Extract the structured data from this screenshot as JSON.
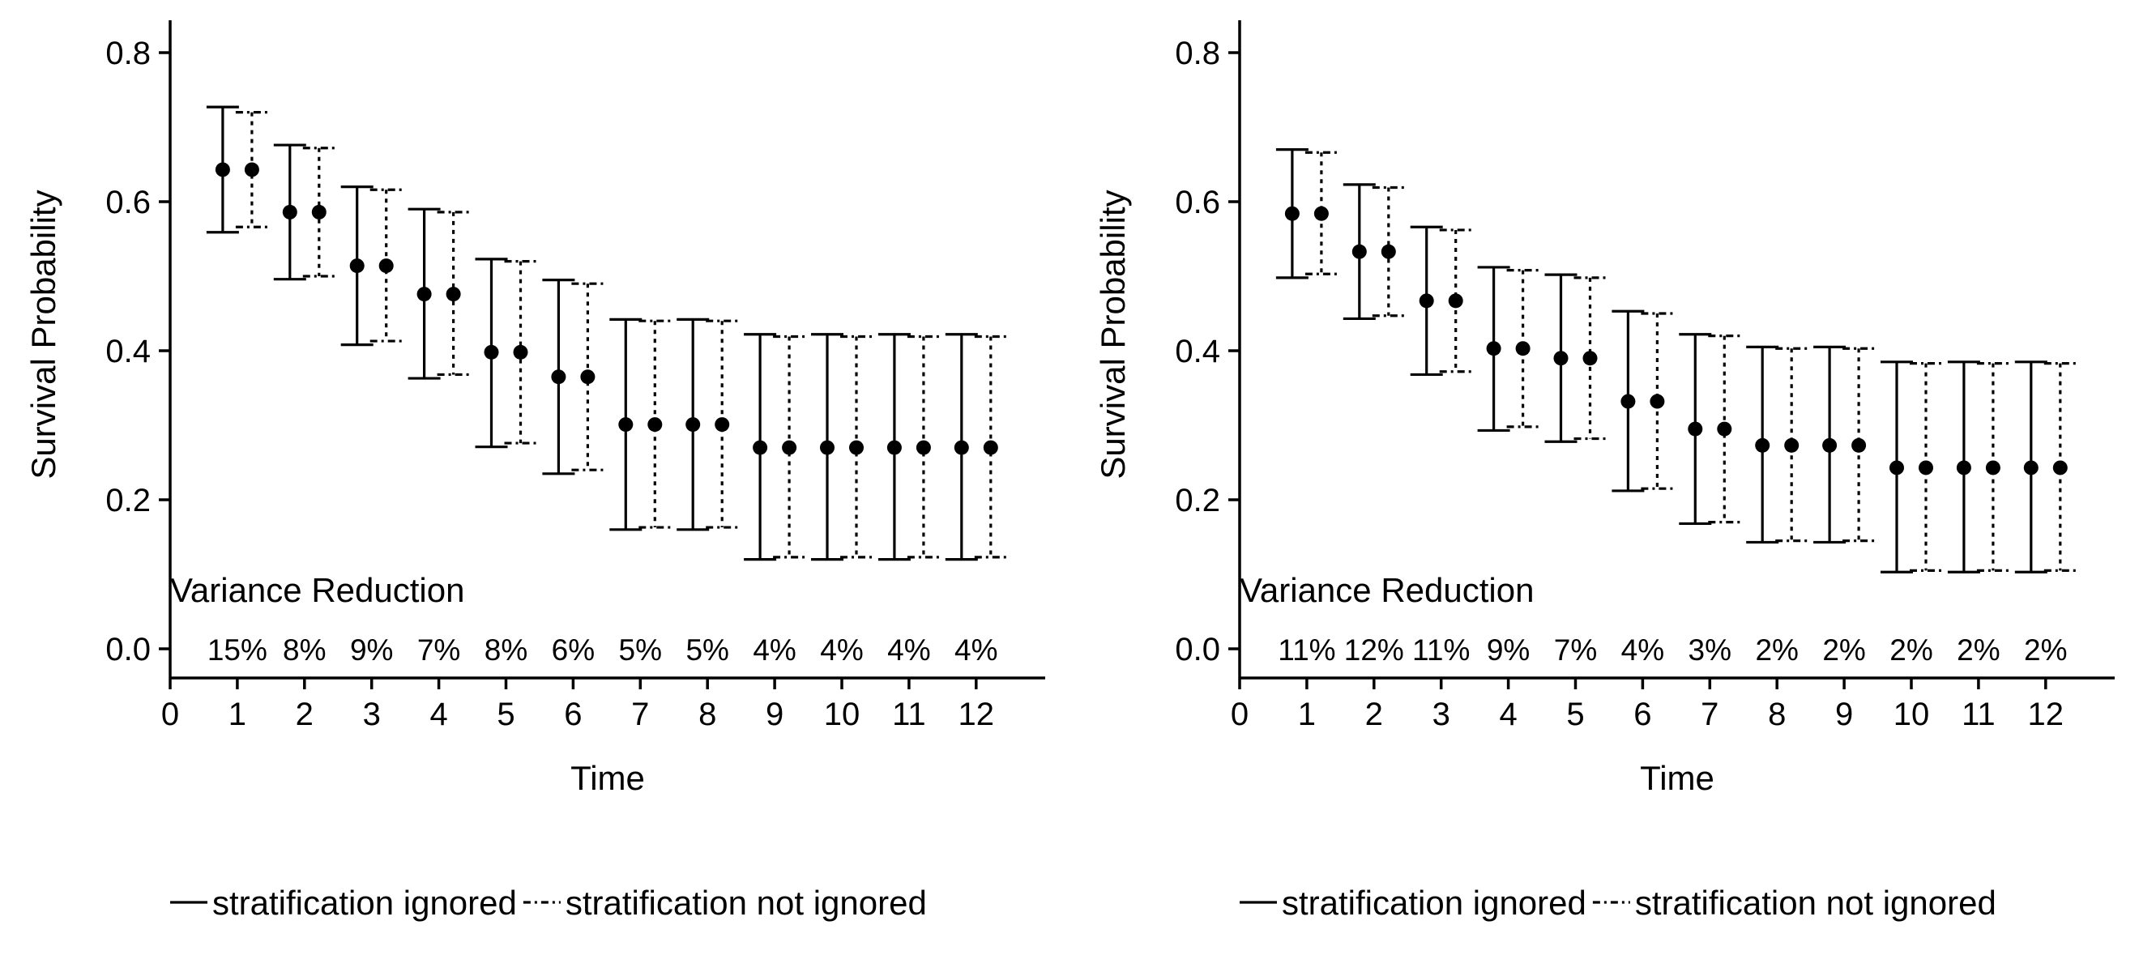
{
  "chart_data": [
    {
      "type": "errorbar",
      "xlabel": "Time",
      "ylabel": "Survival Probability",
      "xlim": [
        0,
        13
      ],
      "ylim": [
        0,
        0.8
      ],
      "xticks": [
        "0",
        "1",
        "2",
        "3",
        "4",
        "5",
        "6",
        "7",
        "8",
        "9",
        "10",
        "11",
        "12"
      ],
      "yticks": [
        "0.0",
        "0.2",
        "0.4",
        "0.6",
        "0.8"
      ],
      "x": [
        1,
        2,
        3,
        4,
        5,
        6,
        7,
        8,
        9,
        10,
        11,
        12
      ],
      "series": [
        {
          "name": "stratification ignored",
          "line_style": "solid",
          "estimate": [
            0.643,
            0.586,
            0.514,
            0.476,
            0.398,
            0.365,
            0.301,
            0.301,
            0.27,
            0.27,
            0.27,
            0.27
          ],
          "lower": [
            0.559,
            0.496,
            0.408,
            0.363,
            0.271,
            0.235,
            0.16,
            0.16,
            0.12,
            0.12,
            0.12,
            0.12
          ],
          "upper": [
            0.727,
            0.676,
            0.62,
            0.59,
            0.523,
            0.495,
            0.442,
            0.442,
            0.422,
            0.422,
            0.422,
            0.422
          ]
        },
        {
          "name": "stratification not ignored",
          "line_style": "dotted",
          "estimate": [
            0.643,
            0.586,
            0.514,
            0.476,
            0.398,
            0.365,
            0.301,
            0.301,
            0.27,
            0.27,
            0.27,
            0.27
          ],
          "lower": [
            0.566,
            0.5,
            0.413,
            0.368,
            0.276,
            0.24,
            0.163,
            0.163,
            0.123,
            0.123,
            0.123,
            0.123
          ],
          "upper": [
            0.72,
            0.672,
            0.616,
            0.586,
            0.52,
            0.49,
            0.44,
            0.44,
            0.419,
            0.419,
            0.419,
            0.419
          ]
        }
      ],
      "annotation_title": "Variance Reduction",
      "variance_reduction": [
        "15%",
        "8%",
        "9%",
        "7%",
        "8%",
        "6%",
        "5%",
        "5%",
        "4%",
        "4%",
        "4%",
        "4%"
      ],
      "legend": [
        "stratification ignored",
        "stratification not ignored"
      ],
      "legend_position": "bottom",
      "grid": false
    },
    {
      "type": "errorbar",
      "xlabel": "Time",
      "ylabel": "Survival Probability",
      "xlim": [
        0,
        13
      ],
      "ylim": [
        0,
        0.8
      ],
      "xticks": [
        "0",
        "1",
        "2",
        "3",
        "4",
        "5",
        "6",
        "7",
        "8",
        "9",
        "10",
        "11",
        "12"
      ],
      "yticks": [
        "0.0",
        "0.2",
        "0.4",
        "0.6",
        "0.8"
      ],
      "x": [
        1,
        2,
        3,
        4,
        5,
        6,
        7,
        8,
        9,
        10,
        11,
        12
      ],
      "series": [
        {
          "name": "stratification ignored",
          "line_style": "solid",
          "estimate": [
            0.584,
            0.533,
            0.467,
            0.403,
            0.39,
            0.332,
            0.295,
            0.273,
            0.273,
            0.243,
            0.243,
            0.243
          ],
          "lower": [
            0.498,
            0.443,
            0.368,
            0.293,
            0.278,
            0.212,
            0.168,
            0.143,
            0.143,
            0.103,
            0.103,
            0.103
          ],
          "upper": [
            0.67,
            0.623,
            0.566,
            0.512,
            0.502,
            0.453,
            0.422,
            0.405,
            0.405,
            0.385,
            0.385,
            0.385
          ]
        },
        {
          "name": "stratification not ignored",
          "line_style": "dotted",
          "estimate": [
            0.584,
            0.533,
            0.467,
            0.403,
            0.39,
            0.332,
            0.295,
            0.273,
            0.273,
            0.243,
            0.243,
            0.243
          ],
          "lower": [
            0.503,
            0.447,
            0.372,
            0.298,
            0.282,
            0.215,
            0.17,
            0.145,
            0.145,
            0.105,
            0.105,
            0.105
          ],
          "upper": [
            0.666,
            0.619,
            0.562,
            0.508,
            0.498,
            0.45,
            0.42,
            0.403,
            0.403,
            0.383,
            0.383,
            0.383
          ]
        }
      ],
      "annotation_title": "Variance Reduction",
      "variance_reduction": [
        "11%",
        "12%",
        "11%",
        "9%",
        "7%",
        "4%",
        "3%",
        "2%",
        "2%",
        "2%",
        "2%",
        "2%"
      ],
      "legend": [
        "stratification ignored",
        "stratification not ignored"
      ],
      "legend_position": "bottom",
      "grid": false
    }
  ]
}
